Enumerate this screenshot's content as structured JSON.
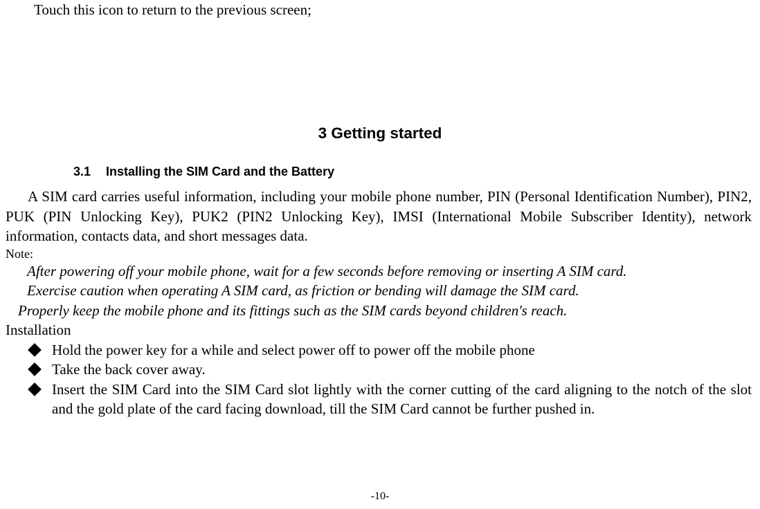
{
  "colors": {
    "text": "#000000",
    "background": "#ffffff"
  },
  "fonts": {
    "body_family": "Times New Roman",
    "body_size_pt": 16,
    "chapter_family": "SimHei",
    "chapter_size_pt": 17,
    "section_family": "Arial",
    "section_size_pt": 14,
    "note_label_size_pt": 14,
    "page_number_size_pt": 12
  },
  "top_line": "Touch this icon to return to the previous screen;",
  "chapter": {
    "number": "3",
    "title": "Getting started",
    "full": "3 Getting started"
  },
  "section": {
    "number": "3.1",
    "title": "Installing the SIM Card and the Battery"
  },
  "paragraph": "A SIM card carries useful information, including your mobile phone number, PIN (Personal Identification Number), PIN2, PUK (PIN Unlocking Key), PUK2 (PIN2 Unlocking Key), IMSI (International Mobile Subscriber Identity), network information, contacts data, and short messages data.",
  "note_label": "Note:",
  "notes": [
    "After powering off your mobile phone, wait for a few seconds before removing or inserting A SIM card.",
    "Exercise caution when operating A SIM card, as friction or bending will damage the SIM card.",
    "Properly keep the mobile phone and its fittings such as the SIM cards beyond children's reach."
  ],
  "installation_label": "Installation",
  "bullets": [
    "Hold the power key for a while and select power off to power off the mobile phone",
    "Take the back cover away.",
    "Insert the SIM Card into the SIM Card slot lightly with the corner cutting of the card aligning to the notch of the slot and the gold plate of the card facing download, till the SIM Card cannot be further pushed in."
  ],
  "page_number": "-10-"
}
